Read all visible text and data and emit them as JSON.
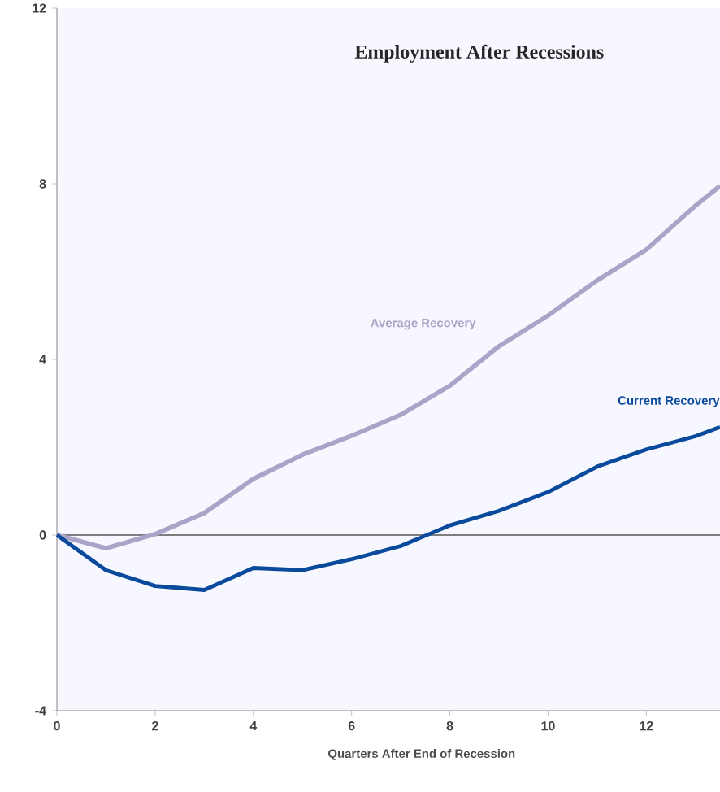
{
  "chart_data": {
    "type": "line",
    "title": "Employment After Recessions",
    "xlabel": "Quarters After End of Recession",
    "xlim": [
      0,
      13.5
    ],
    "ylim": [
      -4,
      12
    ],
    "xticks": [
      0,
      2,
      4,
      6,
      8,
      10,
      12
    ],
    "yticks": [
      -4,
      0,
      4,
      8,
      12
    ],
    "x": [
      0,
      1,
      2,
      3,
      4,
      5,
      6,
      7,
      8,
      9,
      10,
      11,
      12,
      13,
      13.5
    ],
    "series": [
      {
        "name": "Average Recovery",
        "color": "#a9a5c8",
        "values": [
          0,
          -0.3,
          0.02,
          0.5,
          1.28,
          1.83,
          2.26,
          2.74,
          3.4,
          4.3,
          5.0,
          5.8,
          6.5,
          7.5,
          7.95
        ]
      },
      {
        "name": "Current Recovery",
        "color": "#0a4a9c",
        "values": [
          0,
          -0.8,
          -1.16,
          -1.25,
          -0.75,
          -0.8,
          -0.55,
          -0.25,
          0.22,
          0.55,
          0.98,
          1.56,
          1.95,
          2.25,
          2.46
        ]
      }
    ],
    "ref_lines": [
      {
        "axis": "y",
        "value": 0,
        "color": "#555555"
      }
    ],
    "line_style": "solid"
  }
}
